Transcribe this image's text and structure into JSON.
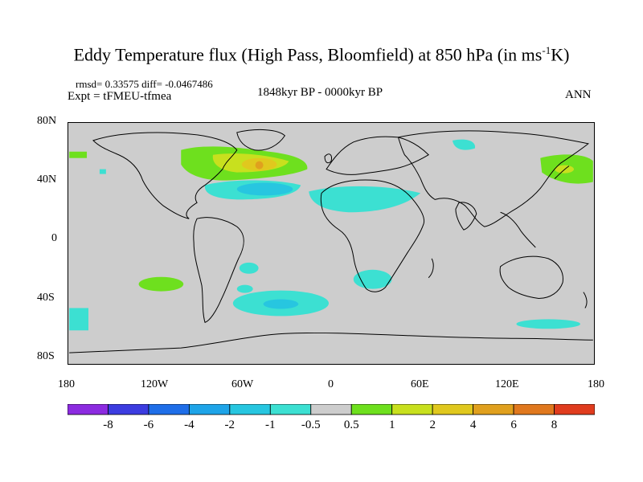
{
  "title": "Eddy Temperature flux (High Pass, Bloomfield) at 850 hPa (in ms",
  "title_unit_sup": "-1",
  "title_unit_end": "K)",
  "stats": "rmsd= 0.33575 diff= -0.0467486",
  "experiment": "Expt = tFMEU-tfmea",
  "period": "1848kyr BP - 0000kyr BP",
  "season": "ANN",
  "y_ticks": [
    "80N",
    "40N",
    "0",
    "40S",
    "80S"
  ],
  "x_ticks": [
    "180",
    "120W",
    "60W",
    "0",
    "60E",
    "120E",
    "180"
  ],
  "colorbar": {
    "colors": [
      "#8c2be0",
      "#3c3ce0",
      "#1f6ee8",
      "#1ea4e8",
      "#27c6e0",
      "#3ce0d2",
      "#cdcdcd",
      "#6ee01e",
      "#c8e01e",
      "#e0c81e",
      "#e0a01e",
      "#e0781e",
      "#e03c1e"
    ],
    "labels": [
      "-8",
      "-6",
      "-4",
      "-2",
      "-1",
      "-0.5",
      "0.5",
      "1",
      "2",
      "4",
      "6",
      "8"
    ]
  }
}
